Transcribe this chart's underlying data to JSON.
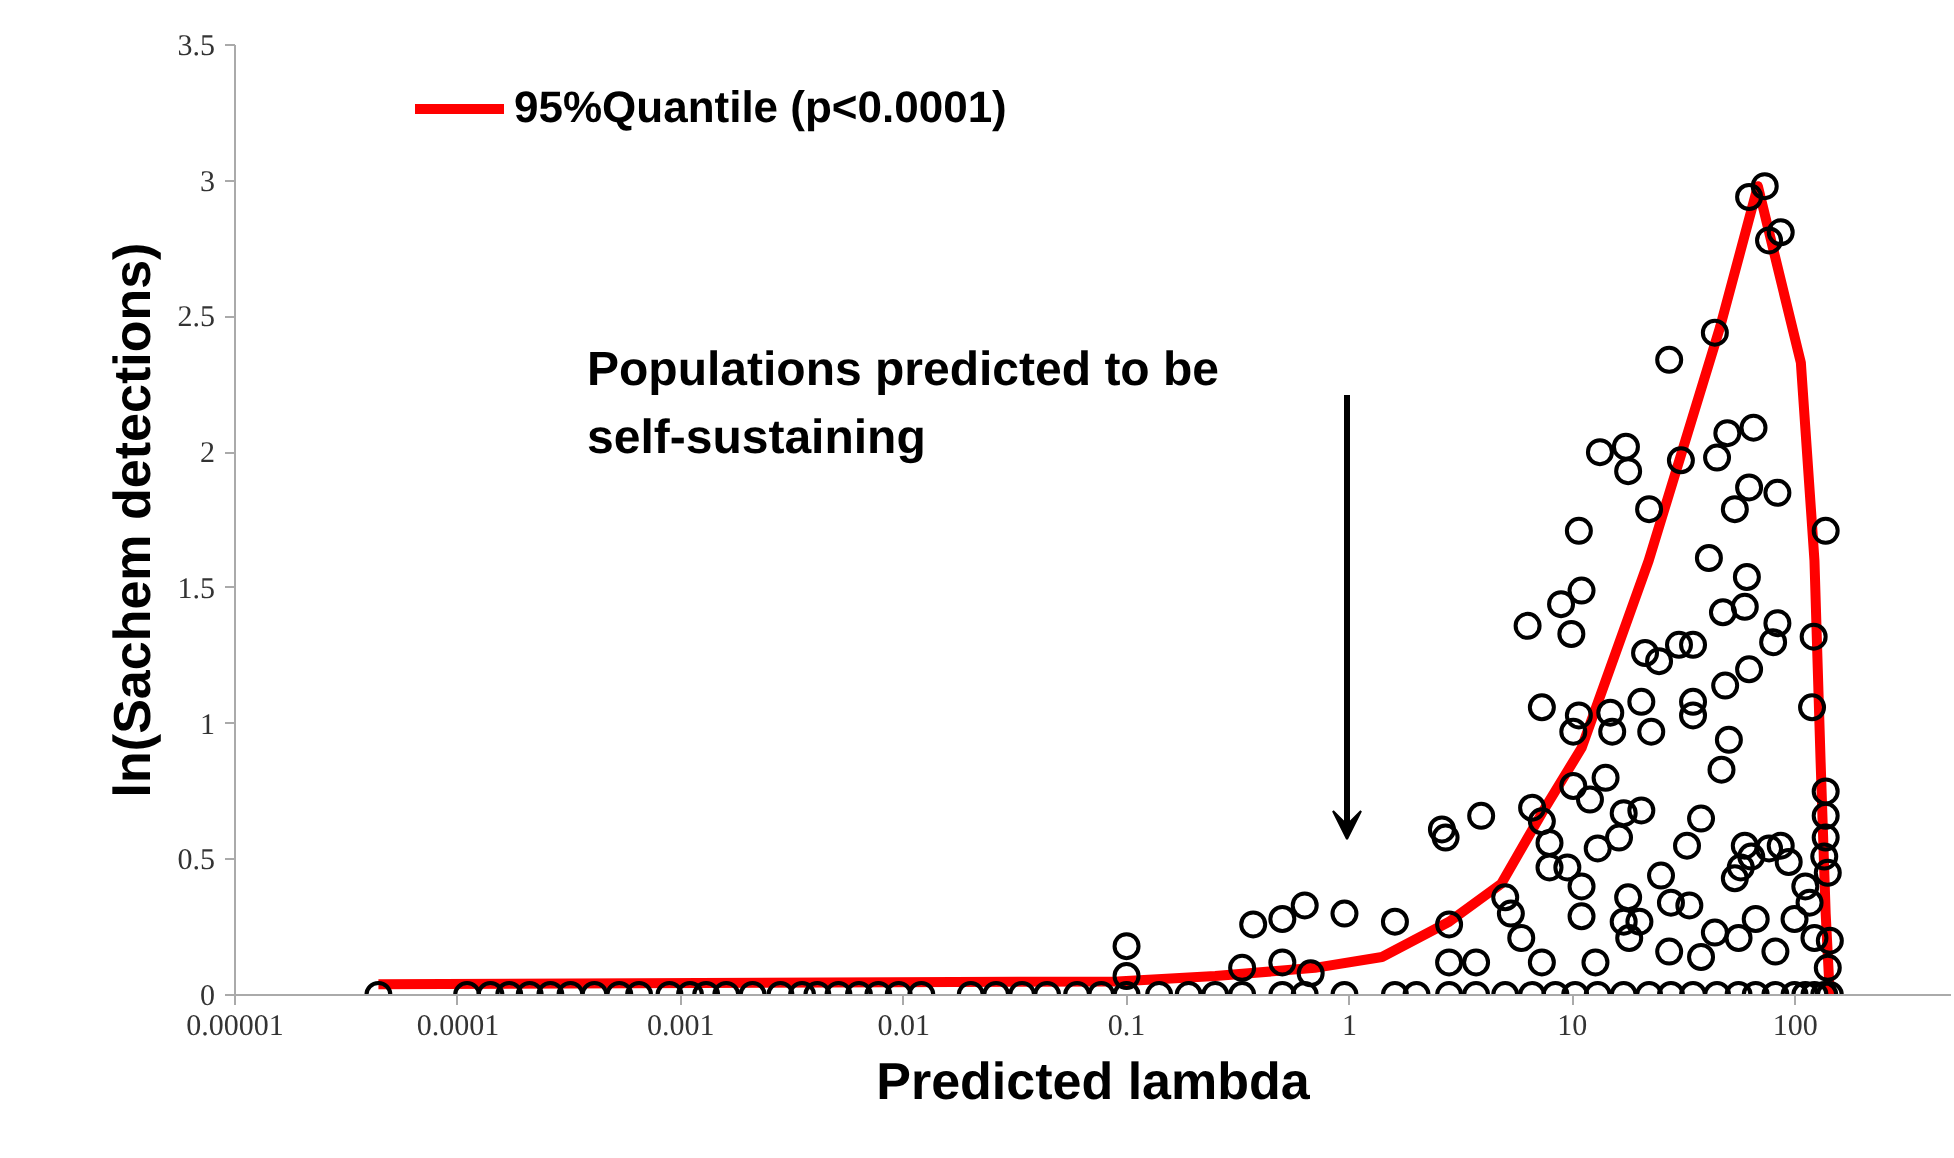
{
  "chart_data": {
    "type": "scatter",
    "xlabel": "Predicted lambda",
    "ylabel": "ln(Sachem detections)",
    "log": "x",
    "grid": false,
    "legend": "top left",
    "marker": "circle",
    "xlim": [
      1e-05,
      500
    ],
    "ylim": [
      0,
      3.5
    ],
    "xticks": [
      {
        "value": 1e-05,
        "label": "0.00001"
      },
      {
        "value": 0.0001,
        "label": "0.0001"
      },
      {
        "value": 0.001,
        "label": "0.001"
      },
      {
        "value": 0.01,
        "label": "0.01"
      },
      {
        "value": 0.1,
        "label": "0.1"
      },
      {
        "value": 1,
        "label": "1"
      },
      {
        "value": 10,
        "label": "10"
      },
      {
        "value": 100,
        "label": "100"
      }
    ],
    "yticks": [
      0,
      0.5,
      1,
      1.5,
      2,
      2.5,
      3,
      3.5
    ],
    "annotations": [
      "Populations predicted to be self-sustaining"
    ],
    "series": [
      {
        "color": "#000000",
        "x": [
          4.4e-05,
          0.00011,
          0.00014,
          0.00017,
          0.00021,
          0.00026,
          0.00032,
          0.00041,
          0.00053,
          0.00065,
          0.00089,
          0.0011,
          0.0013,
          0.0016,
          0.0021,
          0.0028,
          0.0035,
          0.0041,
          0.0051,
          0.0063,
          0.0077,
          0.0095,
          0.012,
          0.02,
          0.026,
          0.034,
          0.044,
          0.06,
          0.077,
          0.1,
          0.14,
          0.19,
          0.25,
          0.33,
          0.5,
          0.63,
          0.95,
          1.6,
          2.0,
          2.8,
          3.7,
          5.0,
          6.6,
          8.4,
          10.3,
          13.0,
          17.0,
          22.1,
          27.7,
          34.8,
          44.6,
          55.7,
          66.5,
          81.5,
          99.3,
          111,
          122,
          135,
          143,
          0.1,
          0.37,
          0.5,
          0.63,
          0.95,
          1.6,
          2.8,
          2.6,
          2.7,
          3.9,
          6.6,
          7.3,
          10.1,
          12.0,
          14.1,
          17.0,
          20.4,
          7.9,
          13.0,
          16.2,
          7.9,
          9.5,
          11.0,
          5.0,
          5.3,
          11.0,
          17.8,
          17.0,
          20.0,
          18.0,
          25.0,
          27.7,
          33.5,
          37.8,
          32.7,
          46.7,
          59.4,
          63.5,
          57.0,
          76.3,
          86.1,
          93.5,
          53.6,
          66.5,
          43.6,
          55.7,
          81.5,
          99.3,
          137,
          137,
          137,
          135,
          140,
          111,
          116,
          122,
          37.8,
          27.2,
          12.7,
          5.9,
          7.3,
          3.7,
          2.8,
          0.5,
          0.33,
          0.67,
          0.1,
          27.2,
          43.6,
          62.1,
          73.0,
          76.3,
          86.1,
          13.3,
          17.4,
          17.8,
          30.7,
          44.6,
          49.6,
          65.0,
          62.1,
          53.6,
          83.2,
          22.1,
          10.7,
          137,
          41.0,
          60.7,
          11.0,
          8.9,
          6.3,
          9.9,
          47.4,
          59.4,
          83.2,
          79.6,
          121,
          21.2,
          24.5,
          30.1,
          34.8,
          62.1,
          48.5,
          119,
          7.3,
          10.7,
          10.1,
          14.8,
          15.1,
          20.4,
          22.6,
          34.8,
          34.8,
          50.4,
          140,
          143
        ],
        "values": [
          0,
          0,
          0,
          0,
          0,
          0,
          0,
          0,
          0,
          0,
          0,
          0,
          0,
          0,
          0,
          0,
          0,
          0,
          0,
          0,
          0,
          0,
          0,
          0,
          0,
          0,
          0,
          0,
          0,
          0,
          0,
          0,
          0,
          0,
          0,
          0,
          0,
          0,
          0,
          0,
          0,
          0,
          0,
          0,
          0,
          0,
          0,
          0,
          0,
          0,
          0,
          0,
          0,
          0,
          0,
          0,
          0,
          0,
          0,
          0.18,
          0.26,
          0.28,
          0.33,
          0.3,
          0.27,
          0.26,
          0.61,
          0.58,
          0.66,
          0.69,
          0.64,
          0.77,
          0.72,
          0.8,
          0.67,
          0.68,
          0.56,
          0.54,
          0.58,
          0.47,
          0.47,
          0.4,
          0.36,
          0.3,
          0.29,
          0.36,
          0.27,
          0.27,
          0.21,
          0.44,
          0.34,
          0.33,
          0.65,
          0.55,
          0.83,
          0.55,
          0.51,
          0.47,
          0.54,
          0.55,
          0.49,
          0.43,
          0.28,
          0.23,
          0.21,
          0.16,
          0.28,
          0.75,
          0.66,
          0.58,
          0.51,
          0.45,
          0.4,
          0.34,
          0.21,
          0.14,
          0.16,
          0.12,
          0.21,
          0.12,
          0.12,
          0.12,
          0.12,
          0.1,
          0.08,
          0.07,
          2.34,
          2.44,
          2.94,
          2.98,
          2.78,
          2.81,
          2.0,
          2.02,
          1.93,
          1.97,
          1.98,
          2.07,
          2.09,
          1.87,
          1.79,
          1.85,
          1.79,
          1.71,
          1.71,
          1.61,
          1.54,
          1.49,
          1.44,
          1.36,
          1.33,
          1.41,
          1.43,
          1.37,
          1.3,
          1.32,
          1.26,
          1.23,
          1.29,
          1.29,
          1.2,
          1.14,
          1.06,
          1.06,
          1.03,
          0.97,
          1.04,
          0.97,
          1.08,
          0.97,
          1.08,
          1.03,
          0.94,
          0.1,
          0.2
        ]
      },
      {
        "type": "line",
        "name": "95%Quantile (p<0.0001)",
        "color": "#ff0000",
        "marker": "none",
        "line_style": "solid",
        "x": [
          4.4e-05,
          0.091,
          0.25,
          0.7,
          1.4,
          2.8,
          4.8,
          7.3,
          11,
          22,
          46,
          68,
          106,
          122,
          130,
          137,
          143
        ],
        "values": [
          0.04,
          0.05,
          0.07,
          0.1,
          0.14,
          0.27,
          0.41,
          0.67,
          0.91,
          1.6,
          2.46,
          2.98,
          2.33,
          1.6,
          0.86,
          0.3,
          0
        ]
      }
    ]
  }
}
